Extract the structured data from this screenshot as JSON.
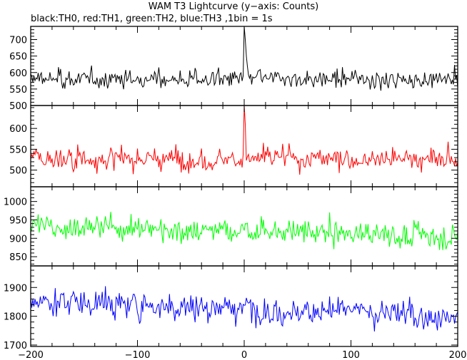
{
  "chart_data": {
    "type": "line",
    "title": "WAM T3 Lightcurve (y−axis: Counts)",
    "subtitle": "black:TH0, red:TH1, green:TH2, blue:TH3 ,1bin = 1s",
    "xlim": [
      -200,
      200
    ],
    "x_ticks": [
      -200,
      -100,
      0,
      100,
      200
    ],
    "x_tick_labels": [
      "−200",
      "−100",
      "0",
      "100",
      "200"
    ],
    "grid": false,
    "panels": [
      {
        "name": "TH0",
        "color": "#000000",
        "ylim": [
          500,
          740
        ],
        "y_ticks": [
          500,
          550,
          600,
          650,
          700
        ],
        "baseline": 580,
        "noise": 22,
        "trend": 0,
        "peaks": [
          {
            "x": 0,
            "value": 740
          },
          {
            "x": 1,
            "value": 700
          },
          {
            "x": 2,
            "value": 650
          }
        ]
      },
      {
        "name": "TH1",
        "color": "#ff0000",
        "ylim": [
          460,
          655
        ],
        "y_ticks": [
          500,
          550,
          600
        ],
        "baseline": 527,
        "noise": 22,
        "trend": 0,
        "peaks": [
          {
            "x": 0,
            "value": 655
          },
          {
            "x": 1,
            "value": 610
          }
        ]
      },
      {
        "name": "TH2",
        "color": "#00ff00",
        "ylim": [
          825,
          1040
        ],
        "y_ticks": [
          850,
          900,
          950,
          1000
        ],
        "baseline": 935,
        "noise": 28,
        "trend": -30,
        "peaks": []
      },
      {
        "name": "TH3",
        "color": "#0000ff",
        "ylim": [
          1695,
          1975
        ],
        "y_ticks": [
          1700,
          1800,
          1900
        ],
        "baseline": 1855,
        "noise": 40,
        "trend": -55,
        "peaks": []
      }
    ]
  }
}
